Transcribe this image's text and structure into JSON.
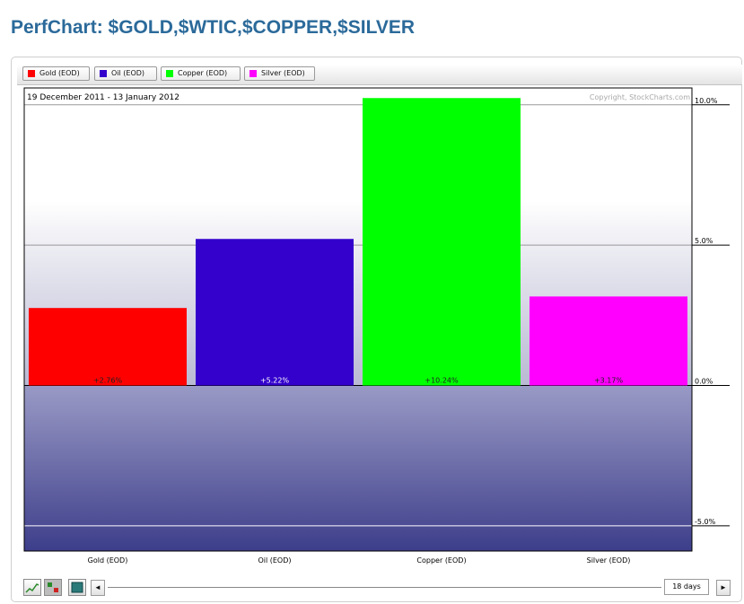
{
  "page": {
    "title": "PerfChart: $GOLD,$WTIC,$COPPER,$SILVER"
  },
  "legend": [
    {
      "label": "Gold (EOD)",
      "color": "#ff0000"
    },
    {
      "label": "Oil (EOD)",
      "color": "#3300cc"
    },
    {
      "label": "Copper (EOD)",
      "color": "#00ff00"
    },
    {
      "label": "Silver (EOD)",
      "color": "#ff00ff"
    }
  ],
  "chart_data": {
    "type": "bar",
    "date_range": "19 December 2011 - 13 January 2012",
    "copyright": "Copyright, StockCharts.com",
    "categories": [
      "Gold (EOD)",
      "Oil (EOD)",
      "Copper (EOD)",
      "Silver (EOD)"
    ],
    "values": [
      2.76,
      5.22,
      10.24,
      3.17
    ],
    "value_labels": [
      "+2.76%",
      "+5.22%",
      "+10.24%",
      "+3.17%"
    ],
    "colors": [
      "#ff0000",
      "#3300cc",
      "#00ff00",
      "#ff00ff"
    ],
    "y_ticks": [
      10,
      5,
      0,
      -5
    ],
    "y_tick_labels": [
      "10.0%",
      "5.0%",
      "0.0%",
      "-5.0%"
    ],
    "ylim": [
      -5.9,
      10.6
    ],
    "grid": true,
    "y_axis_side": "right"
  },
  "controls": {
    "line_chart_icon": "line-chart-icon",
    "bar_chart_icon": "bar-chart-icon",
    "histogram_icon": "histogram-icon",
    "scroll_left": "◄",
    "scroll_right": "►",
    "days_label": "18 days"
  }
}
